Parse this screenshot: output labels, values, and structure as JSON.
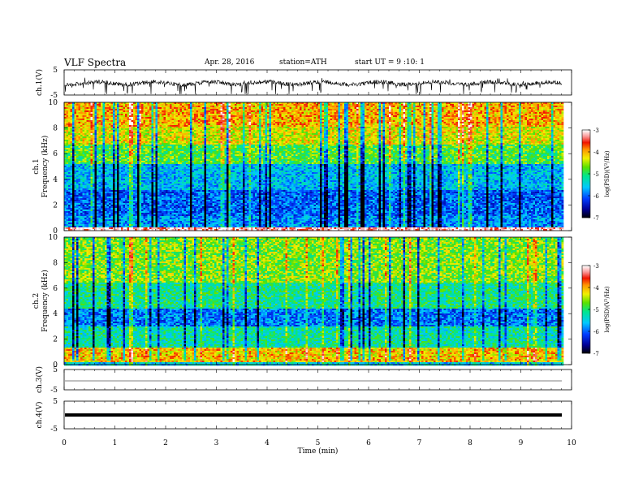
{
  "header": {
    "title": "VLF Spectra",
    "date": "Apr. 28, 2016",
    "station": "station=ATH",
    "start_ut": "start UT =  9 :10: 1"
  },
  "chart_data": [
    {
      "type": "line",
      "panel": "ch1-waveform",
      "ylabel": "ch.1(V)",
      "ylim": [
        -5,
        5
      ],
      "yticks": [
        "5",
        "-5"
      ],
      "xlim": [
        0,
        10
      ],
      "series": [
        {
          "values_description_level": 0,
          "values": []
        }
      ]
    },
    {
      "type": "heatmap",
      "panel": "ch1-spectrogram",
      "ylabel": "Frequency (kHz)",
      "channel_label": "ch.1",
      "ylim": [
        0,
        10
      ],
      "yticks": [
        "0",
        "2",
        "4",
        "6",
        "8",
        "10"
      ],
      "xlim": [
        0,
        9.8
      ],
      "colorbar": {
        "label": "log(PSD)(V²/Hz)",
        "range": [
          -7,
          -3
        ],
        "ticks": [
          "-3",
          "-4",
          "-5",
          "-6",
          "-7"
        ]
      },
      "bands_kHz": [
        {
          "from": 0,
          "to": 0.3,
          "level": -3.2
        },
        {
          "from": 0.3,
          "to": 1.2,
          "level": -5.8
        },
        {
          "from": 1.2,
          "to": 3.2,
          "level": -6.0
        },
        {
          "from": 3.2,
          "to": 5.2,
          "level": -5.6
        },
        {
          "from": 5.2,
          "to": 6.8,
          "level": -4.8
        },
        {
          "from": 6.8,
          "to": 8.2,
          "level": -4.3
        },
        {
          "from": 8.2,
          "to": 10,
          "level": -4.0
        }
      ]
    },
    {
      "type": "heatmap",
      "panel": "ch2-spectrogram",
      "ylabel": "Frequency (kHz)",
      "channel_label": "ch.2",
      "ylim": [
        0,
        10
      ],
      "yticks": [
        "0",
        "2",
        "4",
        "6",
        "8",
        "10"
      ],
      "xlim": [
        0,
        9.8
      ],
      "colorbar": {
        "label": "log(PSD)(V²/Hz)",
        "range": [
          -7,
          -3
        ],
        "ticks": [
          "-3",
          "-4",
          "-5",
          "-6",
          "-7"
        ]
      },
      "bands_kHz": [
        {
          "from": 0,
          "to": 0.3,
          "level": -5.5
        },
        {
          "from": 0.3,
          "to": 1.4,
          "level": -4.1
        },
        {
          "from": 1.4,
          "to": 3.0,
          "level": -5.2
        },
        {
          "from": 3.0,
          "to": 4.5,
          "level": -5.9
        },
        {
          "from": 4.5,
          "to": 6.5,
          "level": -5.1
        },
        {
          "from": 6.5,
          "to": 10,
          "level": -4.6
        }
      ]
    },
    {
      "type": "line",
      "panel": "ch3-waveform",
      "ylabel": "ch.3(V)",
      "ylim": [
        -5,
        5
      ],
      "yticks": [
        "5",
        "-5"
      ],
      "xlim": [
        0,
        10
      ]
    },
    {
      "type": "line",
      "panel": "ch4-waveform",
      "ylabel": "ch.4(V)",
      "ylim": [
        -5,
        5
      ],
      "yticks": [
        "5",
        "-5"
      ],
      "xlim": [
        0,
        10
      ],
      "xlabel": "Time (min)",
      "xticks": [
        "0",
        "1",
        "2",
        "3",
        "4",
        "5",
        "6",
        "7",
        "8",
        "9",
        "10"
      ]
    }
  ]
}
